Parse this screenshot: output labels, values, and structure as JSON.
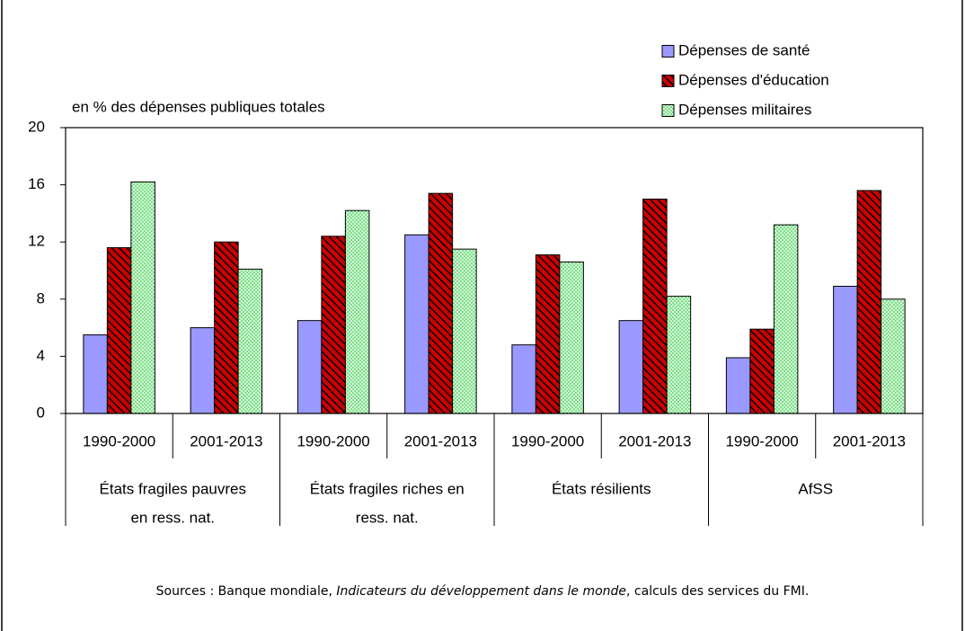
{
  "chart_data": {
    "type": "bar",
    "y_axis_label": "en % des dépenses publiques totales",
    "groups": [
      {
        "label": [
          "États fragiles pauvres",
          "en ress. nat."
        ],
        "categories": [
          "1990-2000",
          "2001-2013"
        ]
      },
      {
        "label": [
          "États fragiles riches en",
          "ress. nat."
        ],
        "categories": [
          "1990-2000",
          "2001-2013"
        ]
      },
      {
        "label": [
          "États résilients"
        ],
        "categories": [
          "1990-2000",
          "2001-2013"
        ]
      },
      {
        "label": [
          "AfSS"
        ],
        "categories": [
          "1990-2000",
          "2001-2013"
        ]
      }
    ],
    "series": [
      {
        "name": "Dépenses de santé",
        "color": "#9999ff",
        "values": [
          5.5,
          6.0,
          6.5,
          12.5,
          4.8,
          6.5,
          3.9,
          8.9
        ]
      },
      {
        "name": "Dépenses d'éducation",
        "color": "#cc0000",
        "values": [
          11.6,
          12.0,
          12.4,
          15.4,
          11.1,
          15.0,
          5.9,
          15.6
        ]
      },
      {
        "name": "Dépenses militaires",
        "color": "#ccffcc",
        "values": [
          16.2,
          10.1,
          14.2,
          11.5,
          10.6,
          8.2,
          13.2,
          8.0
        ]
      }
    ],
    "ylim": [
      0,
      20
    ],
    "yticks": [
      0,
      4,
      8,
      12,
      16,
      20
    ],
    "grid": false,
    "legend": "top-right",
    "source": [
      "Sources : Banque mondiale, ",
      "Indicateurs du développement dans le monde",
      ", calculs des services du FMI."
    ]
  }
}
